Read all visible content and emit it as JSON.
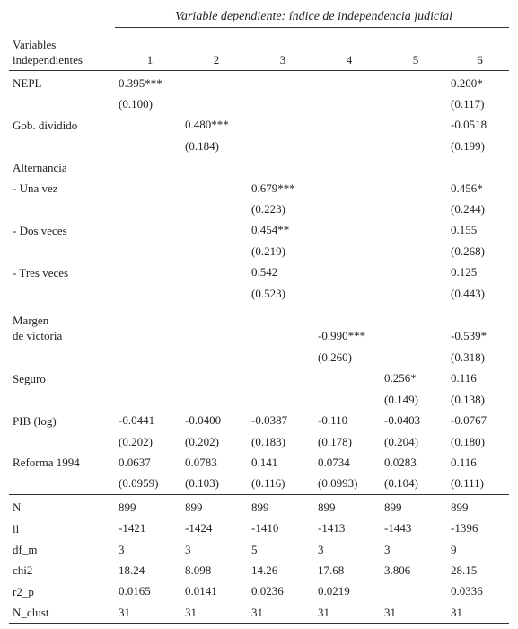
{
  "header": {
    "title": "Variable dependiente: índice de independencia judicial",
    "stub": [
      "Variables",
      "independientes"
    ],
    "columns": [
      "1",
      "2",
      "3",
      "4",
      "5",
      "6"
    ]
  },
  "body": [
    {
      "label": [
        "NEPL"
      ],
      "cells": [
        "0.395***",
        null,
        null,
        null,
        null,
        "0.200*"
      ]
    },
    {
      "label": null,
      "cells": [
        "(0.100)",
        null,
        null,
        null,
        null,
        "(0.117)"
      ]
    },
    {
      "label": [
        "Gob. dividido"
      ],
      "cells": [
        null,
        "0.480***",
        null,
        null,
        null,
        "-0.0518"
      ]
    },
    {
      "label": null,
      "cells": [
        null,
        "(0.184)",
        null,
        null,
        null,
        "(0.199)"
      ]
    },
    {
      "label": [
        "Alternancia"
      ],
      "cells": [
        null,
        null,
        null,
        null,
        null,
        null
      ]
    },
    {
      "label": [
        "- Una vez"
      ],
      "cells": [
        null,
        null,
        "0.679***",
        null,
        null,
        "0.456*"
      ]
    },
    {
      "label": null,
      "cells": [
        null,
        null,
        "(0.223)",
        null,
        null,
        "(0.244)"
      ]
    },
    {
      "label": [
        "- Dos veces"
      ],
      "cells": [
        null,
        null,
        "0.454**",
        null,
        null,
        "0.155"
      ]
    },
    {
      "label": null,
      "cells": [
        null,
        null,
        "(0.219)",
        null,
        null,
        "(0.268)"
      ]
    },
    {
      "label": [
        "- Tres veces"
      ],
      "cells": [
        null,
        null,
        "0.542",
        null,
        null,
        "0.125"
      ]
    },
    {
      "label": null,
      "cells": [
        null,
        null,
        "(0.523)",
        null,
        null,
        "(0.443)"
      ]
    },
    {
      "label": [
        "Margen",
        "de victoria"
      ],
      "cells": [
        null,
        null,
        null,
        "-0.990***",
        null,
        "-0.539*"
      ]
    },
    {
      "label": null,
      "cells": [
        null,
        null,
        null,
        "(0.260)",
        null,
        "(0.318)"
      ]
    },
    {
      "label": [
        "Seguro"
      ],
      "cells": [
        null,
        null,
        null,
        null,
        "0.256*",
        "0.116"
      ]
    },
    {
      "label": null,
      "cells": [
        null,
        null,
        null,
        null,
        "(0.149)",
        "(0.138)"
      ]
    },
    {
      "label": [
        "PIB (log)"
      ],
      "cells": [
        "-0.0441",
        "-0.0400",
        "-0.0387",
        "-0.110",
        "-0.0403",
        "-0.0767"
      ]
    },
    {
      "label": null,
      "cells": [
        "(0.202)",
        "(0.202)",
        "(0.183)",
        "(0.178)",
        "(0.204)",
        "(0.180)"
      ]
    },
    {
      "label": [
        "Reforma 1994"
      ],
      "cells": [
        "0.0637",
        "0.0783",
        "0.141",
        "0.0734",
        "0.0283",
        "0.116"
      ]
    },
    {
      "label": null,
      "cells": [
        "(0.0959)",
        "(0.103)",
        "(0.116)",
        "(0.0993)",
        "(0.104)",
        "(0.111)"
      ]
    }
  ],
  "stats": [
    {
      "label": [
        "N"
      ],
      "cells": [
        "899",
        "899",
        "899",
        "899",
        "899",
        "899"
      ]
    },
    {
      "label": [
        "ll"
      ],
      "cells": [
        "-1421",
        "-1424",
        "-1410",
        "-1413",
        "-1443",
        "-1396"
      ]
    },
    {
      "label": [
        "df_m"
      ],
      "cells": [
        "3",
        "3",
        "5",
        "3",
        "3",
        "9"
      ]
    },
    {
      "label": [
        "chi2"
      ],
      "cells": [
        "18.24",
        "8.098",
        "14.26",
        "17.68",
        "3.806",
        "28.15"
      ]
    },
    {
      "label": [
        "r2_p"
      ],
      "cells": [
        "0.0165",
        "0.0141",
        "0.0236",
        "0.0219",
        null,
        "0.0336"
      ]
    },
    {
      "label": [
        "N_clust"
      ],
      "cells": [
        "31",
        "31",
        "31",
        "31",
        "31",
        "31"
      ]
    }
  ]
}
